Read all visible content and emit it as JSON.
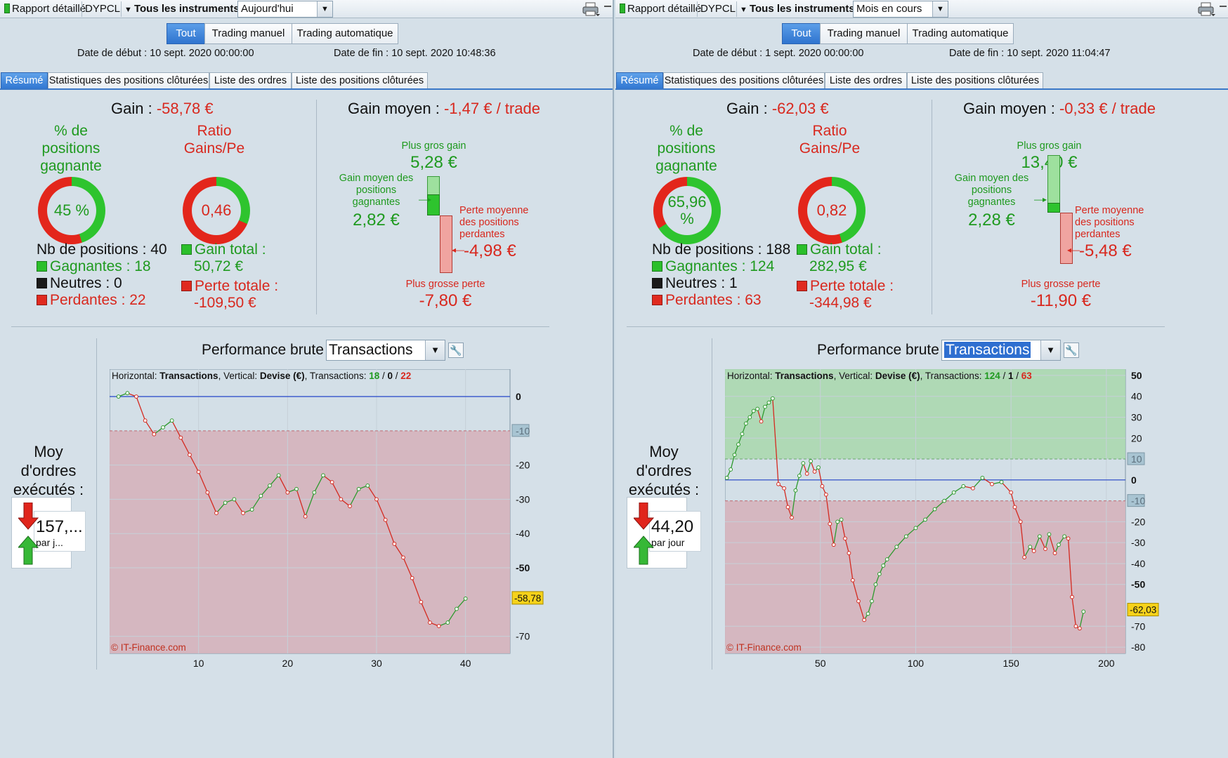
{
  "panels": [
    {
      "toolbar": {
        "report": "Rapport détaillé",
        "instrument": "DYPCL",
        "instruments_menu": "Tous les instruments",
        "period": "Aujourd'hui"
      },
      "filter": {
        "all": "Tout",
        "manual": "Trading manuel",
        "auto": "Trading automatique",
        "active": "all"
      },
      "dates": {
        "start": "Date de début : 10 sept. 2020 00:00:00",
        "end": "Date de fin : 10 sept. 2020 10:48:36"
      },
      "tabs": [
        "Résumé",
        "Statistiques des positions clôturées",
        "Liste des ordres",
        "Liste des positions clôturées"
      ],
      "summary": {
        "gain_label": "Gain :",
        "gain_value": "-58,78 €",
        "win_pct_title": "% de positions gagnante",
        "win_pct": "45 %",
        "win_fraction": 0.45,
        "ratio_title": "Ratio Gains/Pe",
        "ratio": "0,46",
        "ratio_fraction": 0.315,
        "nb_positions": "Nb de positions : 40",
        "winners": "Gagnantes : 18",
        "neutral": "Neutres : 0",
        "losers": "Perdantes : 22",
        "total_gain_label": "Gain total :",
        "total_gain": "50,72 €",
        "total_loss_label": "Perte totale :",
        "total_loss": "-109,50 €"
      },
      "average": {
        "label": "Gain moyen :",
        "value": "-1,47 € / trade",
        "max_gain_label": "Plus gros gain",
        "max_gain": "5,28 €",
        "avg_win_label": "Gain moyen des positions gagnantes",
        "avg_win": "2,82 €",
        "avg_loss_label": "Perte moyenne des positions perdantes",
        "avg_loss": "-4,98 €",
        "max_loss_label": "Plus grosse perte",
        "max_loss": "-7,80 €"
      },
      "perf": {
        "title": "Performance brute",
        "combo": "Transactions",
        "selected": false
      },
      "orders": {
        "title": "Moy d'ordres exécutés :",
        "value": "157,...",
        "unit": "par j..."
      },
      "chart_data": {
        "type": "line",
        "header": {
          "h": "Horizontal:",
          "h_val": "Transactions",
          "v": ", Vertical:",
          "v_val": "Devise (€)",
          "t": ", Transactions:",
          "win": "18",
          "neutral": "0",
          "loss": "22"
        },
        "watermark": "© IT-Finance.com",
        "x": [
          1,
          2,
          3,
          4,
          5,
          6,
          7,
          8,
          9,
          10,
          11,
          12,
          13,
          14,
          15,
          16,
          17,
          18,
          19,
          20,
          21,
          22,
          23,
          24,
          25,
          26,
          27,
          28,
          29,
          30,
          31,
          32,
          33,
          34,
          35,
          36,
          37,
          38,
          39,
          40
        ],
        "y": [
          0,
          1,
          0,
          -7,
          -11,
          -9,
          -7,
          -12,
          -17,
          -22,
          -28,
          -34,
          -31,
          -30,
          -34,
          -33,
          -29,
          -26,
          -23,
          -28,
          -27,
          -35,
          -28,
          -23,
          -25,
          -30,
          -32,
          -27,
          -26,
          -30,
          -36,
          -43,
          -47,
          -53,
          -60,
          -66,
          -67,
          -66,
          -62,
          -59
        ],
        "xlim": [
          0,
          45
        ],
        "ylim": [
          -75,
          8
        ],
        "xticks": [
          10,
          20,
          30,
          40
        ],
        "yticks": [
          0,
          -10,
          -20,
          -30,
          -40,
          -50,
          -70
        ],
        "bold_ticks": [
          0,
          -50
        ],
        "zero": 0,
        "threshold": -10,
        "final": -58.78,
        "final_label": "-58,78",
        "green_band": [],
        "red_band": [
          -75,
          -10
        ]
      }
    },
    {
      "toolbar": {
        "report": "Rapport détaillé",
        "instrument": "DYPCL",
        "instruments_menu": "Tous les instruments",
        "period": "Mois en cours"
      },
      "filter": {
        "all": "Tout",
        "manual": "Trading manuel",
        "auto": "Trading automatique",
        "active": "all"
      },
      "dates": {
        "start": "Date de début : 1 sept. 2020 00:00:00",
        "end": "Date de fin : 10 sept. 2020 11:04:47"
      },
      "tabs": [
        "Résumé",
        "Statistiques des positions clôturées",
        "Liste des ordres",
        "Liste des positions clôturées"
      ],
      "summary": {
        "gain_label": "Gain :",
        "gain_value": "-62,03 €",
        "win_pct_title": "% de positions gagnante",
        "win_pct": "65,96 %",
        "win_fraction": 0.66,
        "ratio_title": "Ratio Gains/Pe",
        "ratio": "0,82",
        "ratio_fraction": 0.45,
        "nb_positions": "Nb de positions : 188",
        "winners": "Gagnantes : 124",
        "neutral": "Neutres : 1",
        "losers": "Perdantes : 63",
        "total_gain_label": "Gain total :",
        "total_gain": "282,95 €",
        "total_loss_label": "Perte totale :",
        "total_loss": "-344,98 €"
      },
      "average": {
        "label": "Gain moyen :",
        "value": "-0,33 € / trade",
        "max_gain_label": "Plus gros gain",
        "max_gain": "13,40 €",
        "avg_win_label": "Gain moyen des positions gagnantes",
        "avg_win": "2,28 €",
        "avg_loss_label": "Perte moyenne des positions perdantes",
        "avg_loss": "-5,48 €",
        "max_loss_label": "Plus grosse perte",
        "max_loss": "-11,90 €"
      },
      "perf": {
        "title": "Performance brute",
        "combo": "Transactions",
        "selected": true
      },
      "orders": {
        "title": "Moy d'ordres exécutés :",
        "value": "44,20",
        "unit": "par jour"
      },
      "chart_data": {
        "type": "line",
        "header": {
          "h": "Horizontal:",
          "h_val": "Transactions",
          "v": ", Vertical:",
          "v_val": "Devise (€)",
          "t": ", Transactions:",
          "win": "124",
          "neutral": "1",
          "loss": "63"
        },
        "watermark": "© IT-Finance.com",
        "x": [
          1,
          3,
          5,
          7,
          9,
          11,
          13,
          15,
          17,
          19,
          21,
          23,
          25,
          28,
          31,
          33,
          35,
          37,
          39,
          41,
          43,
          45,
          47,
          49,
          51,
          53,
          55,
          57,
          59,
          61,
          63,
          65,
          67,
          70,
          73,
          75,
          77,
          79,
          81,
          83,
          85,
          90,
          95,
          100,
          105,
          110,
          115,
          120,
          125,
          130,
          135,
          140,
          145,
          150,
          152,
          155,
          157,
          160,
          162,
          165,
          168,
          170,
          173,
          175,
          178,
          180,
          182,
          184,
          186,
          188
        ],
        "y": [
          1,
          5,
          12,
          17,
          22,
          27,
          30,
          33,
          34,
          28,
          35,
          37,
          39,
          -2,
          -4,
          -13,
          -18,
          -5,
          2,
          8,
          3,
          9,
          4,
          6,
          -3,
          -7,
          -21,
          -31,
          -20,
          -19,
          -28,
          -35,
          -48,
          -58,
          -67,
          -64,
          -58,
          -50,
          -45,
          -41,
          -38,
          -32,
          -27,
          -23,
          -19,
          -14,
          -10,
          -6,
          -3,
          -4,
          1,
          -2,
          -1,
          -6,
          -13,
          -20,
          -37,
          -32,
          -34,
          -27,
          -33,
          -26,
          -35,
          -31,
          -27,
          -28,
          -56,
          -70,
          -71,
          -63
        ],
        "xlim": [
          0,
          210
        ],
        "ylim": [
          -83,
          53
        ],
        "xticks": [
          50,
          100,
          150,
          200
        ],
        "yticks": [
          50,
          40,
          30,
          20,
          10,
          0,
          -10,
          -20,
          -30,
          -40,
          -50,
          -70,
          -80
        ],
        "bold_ticks": [
          50,
          0,
          -50
        ],
        "zero": 0,
        "threshold": -10,
        "upper": 10,
        "final": -62.03,
        "final_label": "-62,03",
        "green_band": [
          10,
          53
        ],
        "red_band": [
          -83,
          -10
        ]
      }
    }
  ],
  "colors": {
    "green": "#1f9a1f",
    "red": "#d8281e",
    "bar_green": "#2ec42e",
    "bar_red": "#e3261b",
    "accent": "#3278d2"
  }
}
